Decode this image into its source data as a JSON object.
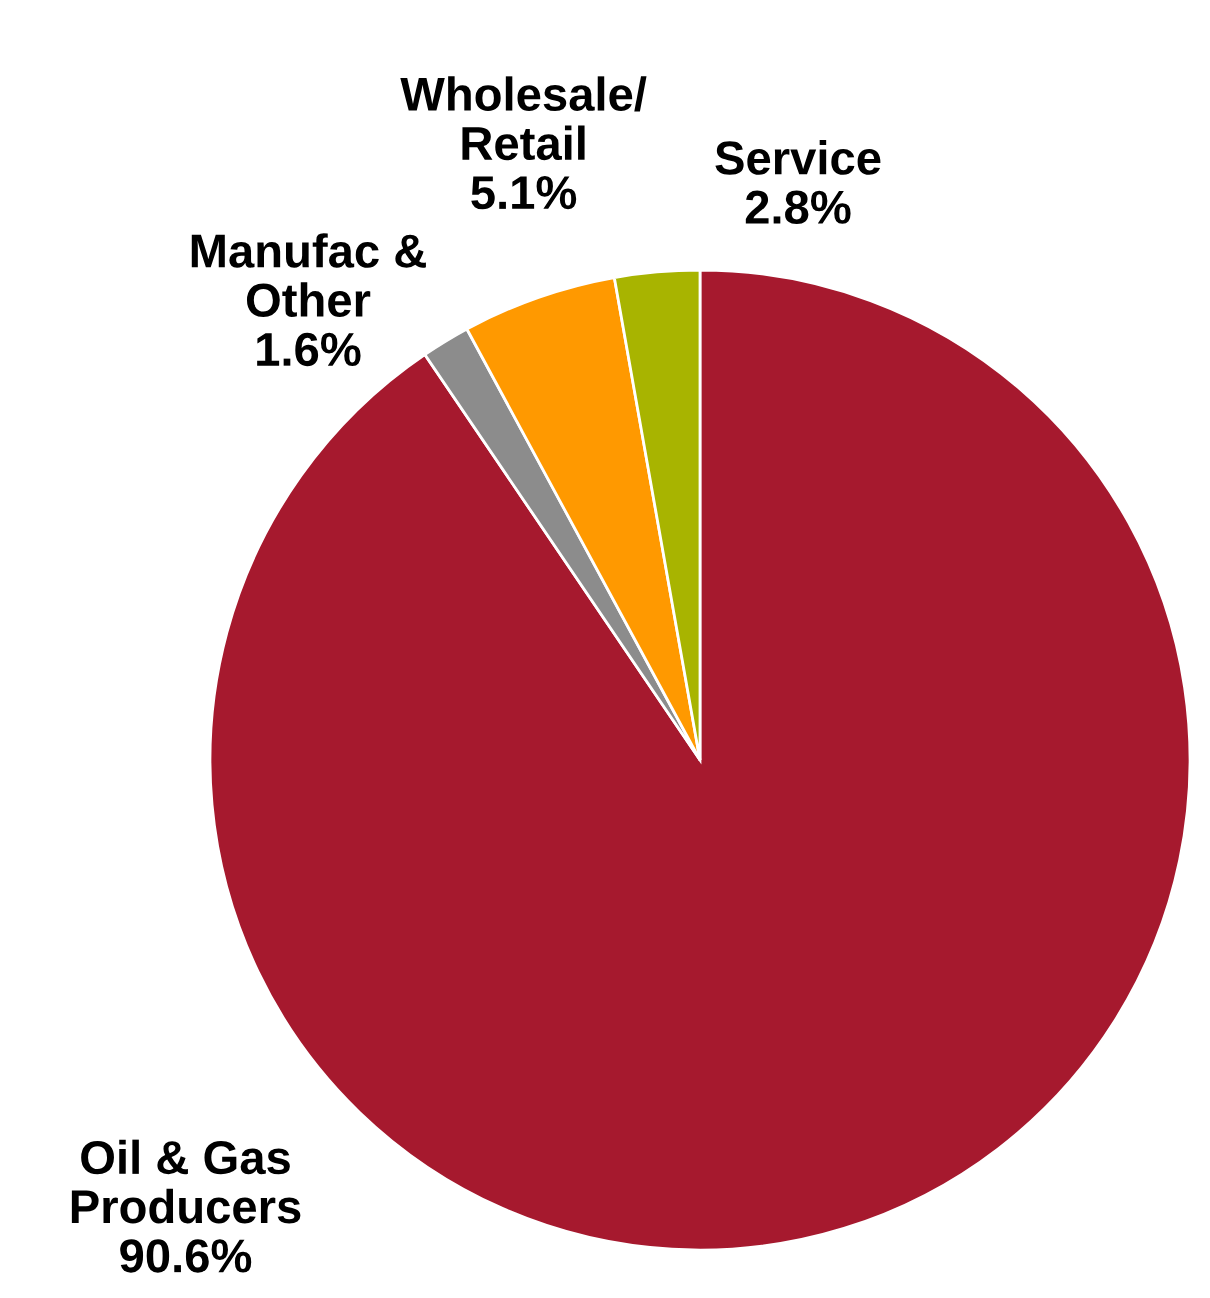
{
  "chart_data": {
    "type": "pie",
    "categories": [
      "Oil & Gas\nProducers",
      "Manufac &\nOther",
      "Wholesale/\nRetail",
      "Service"
    ],
    "values": [
      90.6,
      1.6,
      5.1,
      2.8
    ],
    "colors": [
      "#a6192e",
      "#8c8c8c",
      "#ff9900",
      "#a8b400"
    ],
    "value_labels": [
      "90.6%",
      "1.6%",
      "5.1%",
      "2.8%"
    ]
  }
}
